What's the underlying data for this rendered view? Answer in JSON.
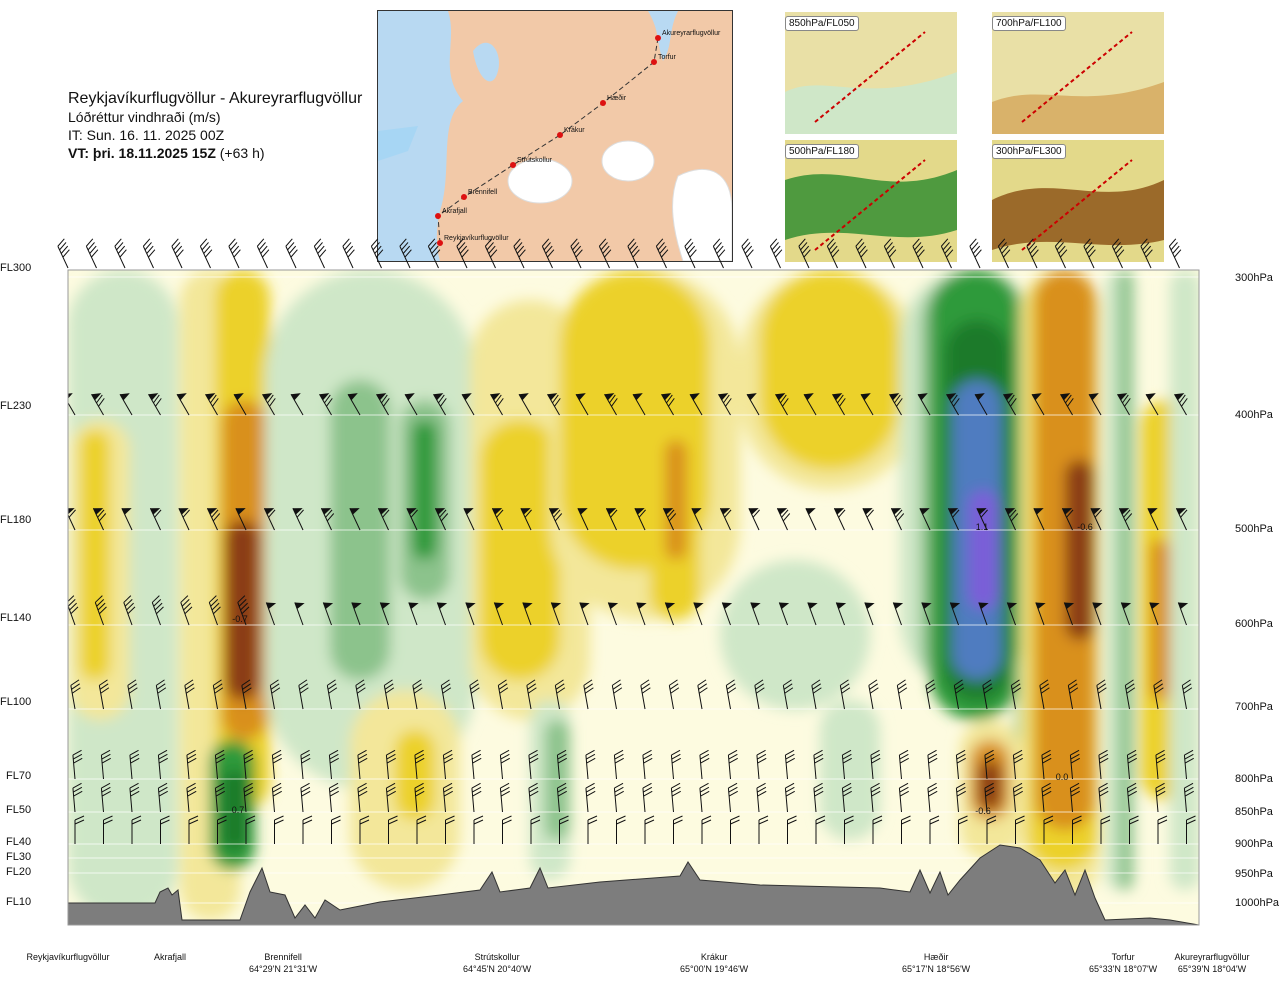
{
  "header": {
    "route": "Reykjavíkurflugvöllur - Akureyrarflugvöllur",
    "parameter": "Lóðréttur vindhraði (m/s)",
    "issue_time": "IT: Sun. 16. 11. 2025 00Z",
    "valid_time": "VT: þri. 18.11.2025 15Z",
    "lead": "(+63 h)"
  },
  "map": {
    "points": [
      {
        "name": "Akureyrarflugvöllur"
      },
      {
        "name": "Torfur"
      },
      {
        "name": "Hæðir"
      },
      {
        "name": "Krákur"
      },
      {
        "name": "Strútskollur"
      },
      {
        "name": "Brennifell"
      },
      {
        "name": "Akrafjall"
      },
      {
        "name": "Reykjavíkurflugvöllur"
      }
    ]
  },
  "mini_maps": [
    {
      "label": "850hPa/FL050"
    },
    {
      "label": "700hPa/FL100"
    },
    {
      "label": "500hPa/FL180"
    },
    {
      "label": "300hPa/FL300"
    }
  ],
  "chart_data": {
    "type": "heatmap",
    "title": "Reykjavíkurflugvöllur - Akureyrarflugvöllur",
    "variable": "Lóðréttur vindhraði (m/s)",
    "y_axis_left": [
      "FL300",
      "FL230",
      "FL180",
      "FL140",
      "FL100",
      "FL70",
      "FL50",
      "FL40",
      "FL30",
      "FL20",
      "FL10"
    ],
    "y_axis_right": [
      "300hPa",
      "400hPa",
      "500hPa",
      "600hPa",
      "700hPa",
      "800hPa",
      "850hPa",
      "900hPa",
      "950hPa",
      "1000hPa"
    ],
    "x_locations": [
      {
        "name": "Reykjavíkurflugvöllur",
        "coord": ""
      },
      {
        "name": "Akrafjall",
        "coord": ""
      },
      {
        "name": "Brennifell",
        "coord": "64°29'N 21°31'W"
      },
      {
        "name": "Strútskollur",
        "coord": "64°45'N 20°40'W"
      },
      {
        "name": "Krákur",
        "coord": "65°00'N 19°46'W"
      },
      {
        "name": "Hæðir",
        "coord": "65°17'N 18°56'W"
      },
      {
        "name": "Torfur",
        "coord": "65°33'N 18°07'W"
      },
      {
        "name": "Akureyrarflugvöllur",
        "coord": "65°39'N 18°04'W"
      }
    ],
    "extrema_labels": [
      "-0.7",
      "0.7",
      "1.1",
      "-0.6",
      "0.0",
      "-0.6"
    ],
    "colors": {
      "strong_down": "#8b3d14",
      "down": "#d9901e",
      "weak_down": "#ecd12a",
      "slight_down": "#f3e79a",
      "neutral": "#fdfbe0",
      "slight_up": "#cfe7c8",
      "up": "#8cc38c",
      "strong_up": "#2e9a3a",
      "very_strong_up": "#1d7a2c",
      "extreme_up": "#4f7cc0",
      "max_up": "#7a5fd8",
      "terrain": "#7d7d7d"
    }
  }
}
